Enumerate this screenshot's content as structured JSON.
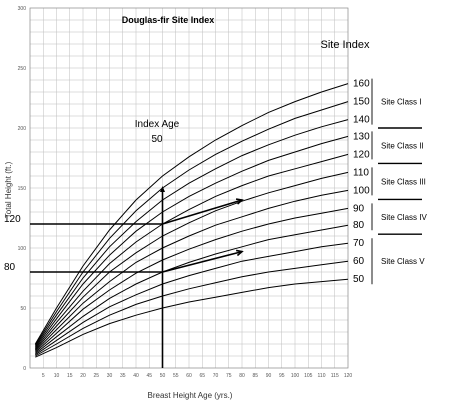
{
  "chart_data": {
    "type": "line",
    "title": "Douglas-fir Site Index",
    "xlabel": "Breast Height Age (yrs.)",
    "ylabel": "Total Height (ft.)",
    "xlim": [
      0,
      120
    ],
    "ylim": [
      0,
      300
    ],
    "x_ticks": [
      5,
      10,
      15,
      20,
      25,
      30,
      35,
      40,
      45,
      50,
      55,
      60,
      65,
      70,
      75,
      80,
      85,
      90,
      95,
      100,
      105,
      110,
      115,
      120
    ],
    "y_ticks": [
      0,
      50,
      100,
      150,
      200,
      250,
      300
    ],
    "grid": true,
    "index_age": {
      "label": "Index Age",
      "value": "50",
      "x": 50
    },
    "series_header": "Site Index",
    "series": [
      {
        "name": "160",
        "x": [
          2,
          10,
          20,
          30,
          40,
          50,
          60,
          70,
          80,
          90,
          100,
          110,
          120
        ],
        "y": [
          20,
          50,
          85,
          115,
          140,
          160,
          176,
          190,
          202,
          213,
          222,
          230,
          237
        ]
      },
      {
        "name": "150",
        "x": [
          2,
          10,
          20,
          30,
          40,
          50,
          60,
          70,
          80,
          90,
          100,
          110,
          120
        ],
        "y": [
          19,
          47,
          80,
          108,
          131,
          150,
          165,
          178,
          189,
          199,
          208,
          215,
          222
        ]
      },
      {
        "name": "140",
        "x": [
          2,
          10,
          20,
          30,
          40,
          50,
          60,
          70,
          80,
          90,
          100,
          110,
          120
        ],
        "y": [
          18,
          44,
          75,
          101,
          122,
          140,
          154,
          166,
          177,
          186,
          194,
          201,
          207
        ]
      },
      {
        "name": "130",
        "x": [
          2,
          10,
          20,
          30,
          40,
          50,
          60,
          70,
          80,
          90,
          100,
          110,
          120
        ],
        "y": [
          17,
          41,
          70,
          94,
          114,
          130,
          143,
          154,
          164,
          173,
          180,
          187,
          193
        ]
      },
      {
        "name": "120",
        "x": [
          2,
          10,
          20,
          30,
          40,
          50,
          60,
          70,
          80,
          90,
          100,
          110,
          120
        ],
        "y": [
          16,
          38,
          64,
          87,
          105,
          120,
          132,
          143,
          152,
          160,
          166,
          172,
          178
        ]
      },
      {
        "name": "110",
        "x": [
          2,
          10,
          20,
          30,
          40,
          50,
          60,
          70,
          80,
          90,
          100,
          110,
          120
        ],
        "y": [
          15,
          35,
          59,
          80,
          96,
          110,
          121,
          131,
          139,
          146,
          152,
          158,
          163
        ]
      },
      {
        "name": "100",
        "x": [
          2,
          10,
          20,
          30,
          40,
          50,
          60,
          70,
          80,
          90,
          100,
          110,
          120
        ],
        "y": [
          14,
          32,
          54,
          72,
          88,
          100,
          110,
          119,
          126,
          133,
          139,
          144,
          148
        ]
      },
      {
        "name": "90",
        "x": [
          2,
          10,
          20,
          30,
          40,
          50,
          60,
          70,
          80,
          90,
          100,
          110,
          120
        ],
        "y": [
          13,
          29,
          49,
          65,
          79,
          90,
          99,
          107,
          114,
          120,
          125,
          129,
          133
        ]
      },
      {
        "name": "80",
        "x": [
          2,
          10,
          20,
          30,
          40,
          50,
          60,
          70,
          80,
          90,
          100,
          110,
          120
        ],
        "y": [
          12,
          26,
          43,
          58,
          70,
          80,
          88,
          95,
          101,
          107,
          111,
          115,
          119
        ]
      },
      {
        "name": "70",
        "x": [
          2,
          10,
          20,
          30,
          40,
          50,
          60,
          70,
          80,
          90,
          100,
          110,
          120
        ],
        "y": [
          11,
          23,
          38,
          51,
          61,
          70,
          77,
          83,
          89,
          93,
          97,
          101,
          104
        ]
      },
      {
        "name": "60",
        "x": [
          2,
          10,
          20,
          30,
          40,
          50,
          60,
          70,
          80,
          90,
          100,
          110,
          120
        ],
        "y": [
          10,
          20,
          33,
          44,
          53,
          60,
          66,
          71,
          76,
          80,
          83,
          86,
          89
        ]
      },
      {
        "name": "50",
        "x": [
          2,
          10,
          20,
          30,
          40,
          50,
          60,
          70,
          80,
          90,
          100,
          110,
          120
        ],
        "y": [
          9,
          17,
          28,
          37,
          44,
          50,
          55,
          59,
          63,
          67,
          70,
          72,
          74
        ]
      }
    ],
    "reference_lines": [
      {
        "label": "120",
        "y": 120,
        "arrow_to": {
          "x": 80,
          "y": 140
        }
      },
      {
        "label": "80",
        "y": 80,
        "arrow_to": {
          "x": 80,
          "y": 97
        }
      }
    ],
    "site_classes": [
      {
        "name": "Site Class I",
        "from": 140,
        "to": 160
      },
      {
        "name": "Site Class II",
        "from": 120,
        "to": 130
      },
      {
        "name": "Site Class III",
        "from": 100,
        "to": 110
      },
      {
        "name": "Site Class IV",
        "from": 80,
        "to": 90
      },
      {
        "name": "Site Class V",
        "from": 50,
        "to": 70
      }
    ]
  }
}
